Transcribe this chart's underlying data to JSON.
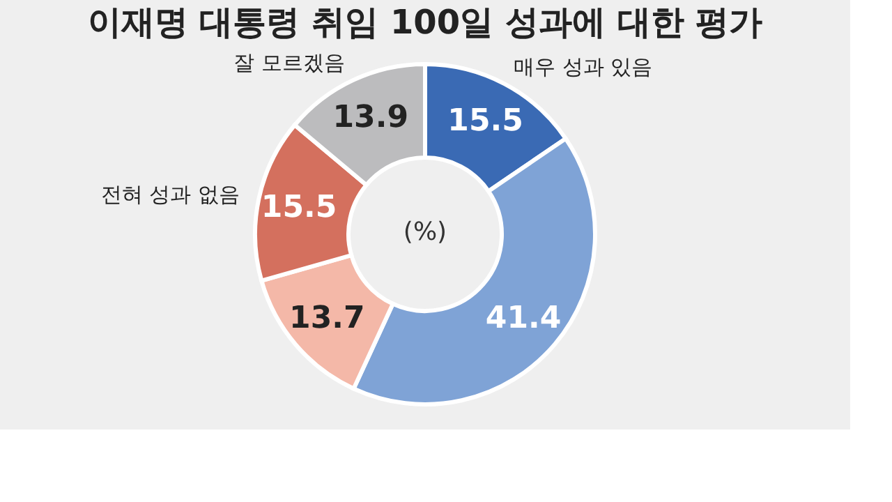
{
  "chart_data": {
    "type": "donut",
    "title": "이재명 대통령 취임 100일 성과에 대한 평가",
    "categories": [
      "매우 성과 있음",
      null,
      null,
      "전혀 성과 없음",
      "잘 모르겠음"
    ],
    "values": [
      15.5,
      41.4,
      13.7,
      15.5,
      13.9
    ],
    "colors": [
      "#3a6ab4",
      "#7fa3d6",
      "#f4b8a8",
      "#d4705e",
      "#bcbcbe"
    ],
    "data_labels": true,
    "legend": false,
    "annotations": [
      "(%)"
    ]
  }
}
